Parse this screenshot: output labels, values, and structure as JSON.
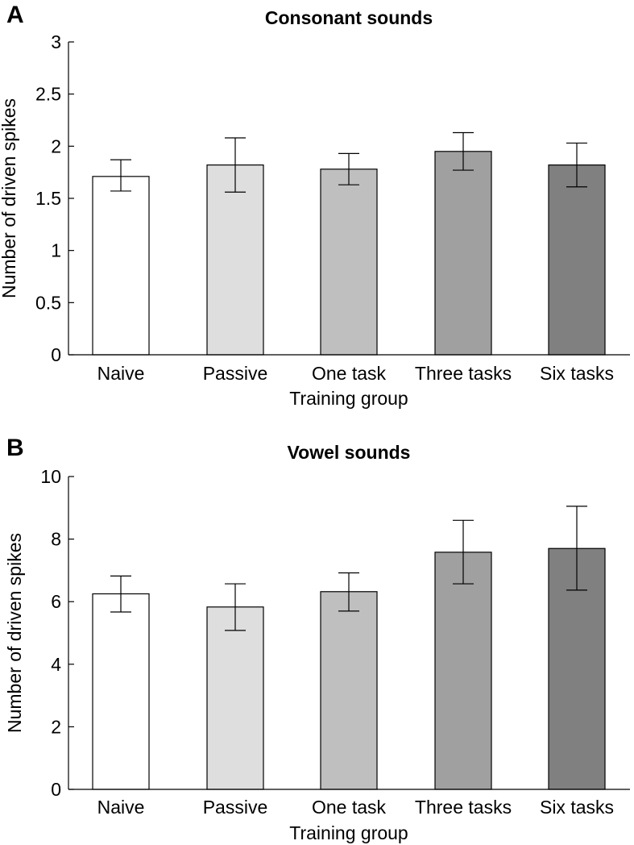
{
  "chart_data": [
    {
      "type": "bar",
      "panel_label": "A",
      "title": "Consonant sounds",
      "xlabel": "Training group",
      "ylabel": "Number of driven spikes",
      "categories": [
        "Naive",
        "Passive",
        "One task",
        "Three tasks",
        "Six tasks"
      ],
      "values": [
        1.71,
        1.82,
        1.78,
        1.95,
        1.82
      ],
      "error_low": [
        1.57,
        1.56,
        1.63,
        1.77,
        1.61
      ],
      "error_high": [
        1.87,
        2.08,
        1.93,
        2.13,
        2.03
      ],
      "bar_colors": [
        "#ffffff",
        "#dedede",
        "#bfbfbf",
        "#a0a0a0",
        "#808080"
      ],
      "ylim": [
        0,
        3
      ],
      "yticks": [
        0,
        0.5,
        1,
        1.5,
        2,
        2.5,
        3
      ],
      "ytick_labels": [
        "0",
        "0.5",
        "1",
        "1.5",
        "2",
        "2.5",
        "3"
      ],
      "grid": false,
      "legend": "none"
    },
    {
      "type": "bar",
      "panel_label": "B",
      "title": "Vowel sounds",
      "xlabel": "Training group",
      "ylabel": "Number of driven spikes",
      "categories": [
        "Naive",
        "Passive",
        "One task",
        "Three tasks",
        "Six tasks"
      ],
      "values": [
        6.25,
        5.83,
        6.32,
        7.58,
        7.7
      ],
      "error_low": [
        5.67,
        5.08,
        5.7,
        6.57,
        6.37
      ],
      "error_high": [
        6.82,
        6.57,
        6.92,
        8.6,
        9.05
      ],
      "bar_colors": [
        "#ffffff",
        "#dedede",
        "#bfbfbf",
        "#a0a0a0",
        "#808080"
      ],
      "ylim": [
        0,
        10
      ],
      "yticks": [
        0,
        2,
        4,
        6,
        8,
        10
      ],
      "ytick_labels": [
        "0",
        "2",
        "4",
        "6",
        "8",
        "10"
      ],
      "grid": false,
      "legend": "none"
    }
  ]
}
